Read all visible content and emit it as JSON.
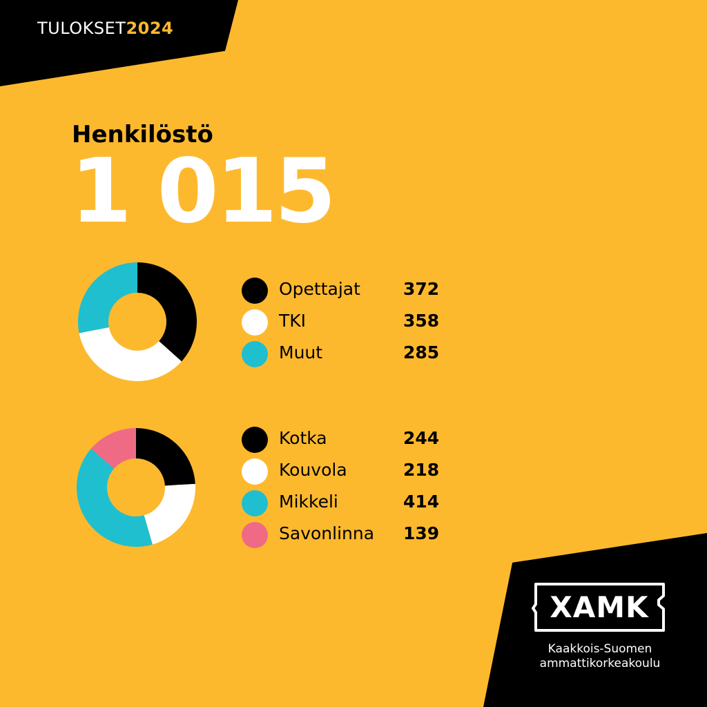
{
  "header": {
    "label": "TULOKSET",
    "year": "2024"
  },
  "title": "Henkilöstö",
  "total": "1 015",
  "colors": {
    "background": "#FDB92E",
    "black": "#000000",
    "white": "#FFFFFF",
    "cyan": "#1FBFCF",
    "pink": "#EE6A85"
  },
  "logo": {
    "text": "XAMK",
    "tagline_line1": "Kaakkois-Suomen",
    "tagline_line2": "ammattikorkeakoulu"
  },
  "chart_data": [
    {
      "type": "pie",
      "donut": true,
      "categories": [
        "Opettajat",
        "TKI",
        "Muut"
      ],
      "values": [
        372,
        358,
        285
      ],
      "colors": [
        "#000000",
        "#FFFFFF",
        "#1FBFCF"
      ],
      "value_labels": [
        "372",
        "358",
        "285"
      ],
      "legend": "right"
    },
    {
      "type": "pie",
      "donut": true,
      "categories": [
        "Kotka",
        "Kouvola",
        "Mikkeli",
        "Savonlinna"
      ],
      "values": [
        244,
        218,
        414,
        139
      ],
      "colors": [
        "#000000",
        "#FFFFFF",
        "#1FBFCF",
        "#EE6A85"
      ],
      "value_labels": [
        "244",
        "218",
        "414",
        "139"
      ],
      "legend": "right"
    }
  ]
}
